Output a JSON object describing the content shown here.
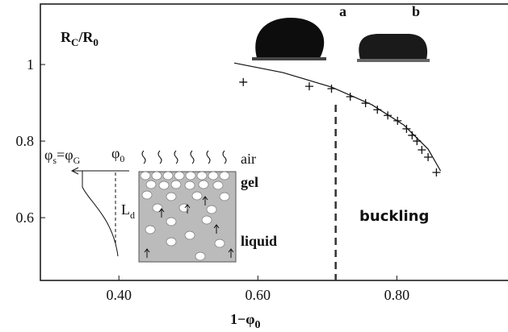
{
  "chart_data": {
    "type": "scatter",
    "y_label": [
      "R",
      "C",
      "/R",
      "0"
    ],
    "x_label": [
      "1−φ",
      "0"
    ],
    "xlim": [
      0.287,
      0.96
    ],
    "ylim": [
      0.436,
      1.158
    ],
    "xticks": [
      {
        "value": 0.4,
        "label": "0.40"
      },
      {
        "value": 0.6,
        "label": "0.60"
      },
      {
        "value": 0.8,
        "label": "0.80"
      }
    ],
    "yticks": [
      0.6,
      0.8,
      1
    ],
    "series": [
      {
        "kind": "points",
        "x": [
          0.579,
          0.674,
          0.706,
          0.733,
          0.755,
          0.772,
          0.787,
          0.801,
          0.814,
          0.822,
          0.829,
          0.836,
          0.845,
          0.857
        ],
        "values": [
          0.954,
          0.943,
          0.937,
          0.916,
          0.899,
          0.882,
          0.867,
          0.853,
          0.832,
          0.815,
          0.8,
          0.777,
          0.758,
          0.718
        ],
        "color": "#111"
      },
      {
        "kind": "line",
        "x": [
          0.566,
          0.636,
          0.706,
          0.764,
          0.81,
          0.845,
          0.863
        ],
        "values": [
          1.004,
          0.979,
          0.941,
          0.895,
          0.842,
          0.779,
          0.722
        ],
        "color": "#111"
      }
    ],
    "threshold_x": 0.712,
    "annotations": {
      "a": "a",
      "b": "b",
      "buckling": "buckling"
    },
    "inset": {
      "phi_s": [
        "φ",
        "s",
        "=φ",
        "G"
      ],
      "phi_0": [
        "φ",
        "0"
      ],
      "air": "air",
      "gel": "gel",
      "L_d": [
        "L",
        "d"
      ],
      "liquid": "liquid"
    }
  }
}
